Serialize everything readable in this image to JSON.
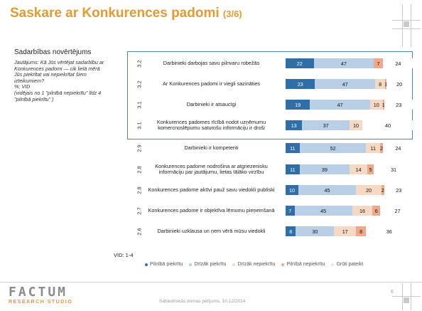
{
  "slide": {
    "title": "Saskare ar Konkurences padomi",
    "title_suffix": "(3/6)",
    "section_title": "Sadarbības novērtējums",
    "question_lines": [
      "Jautājums: Kā Jūs vērtējat sadarbību ar",
      "Konkurences padomi — cik lielā mērā",
      "Jūs piekrītat vai nepiekrītat šiem",
      "izteikumiem?",
      "%; VID",
      "(vidējais no 1 \"pilnībā nepiekrītu\" līdz 4",
      "\"pilnībā piekrītu\" )"
    ],
    "vid_note": "VID: 1-4",
    "footer_text": "Sabiedriskās domas pētījums, 10-12/2014",
    "page_number": "6",
    "logo_top": "FACTUM",
    "logo_bottom": "RESEARCH STUDIO"
  },
  "colors": {
    "title": "#e89a2c",
    "highlight_border": "#4a86c5",
    "series": [
      "#2f6ea6",
      "#b8cfe6",
      "#f6d9c5",
      "#f0a988",
      "#ffffff"
    ]
  },
  "chart_data": {
    "type": "bar",
    "orientation": "horizontal",
    "stacked": true,
    "xlim": [
      0,
      100
    ],
    "legend_position": "bottom",
    "series_names": [
      "Pilnībā piekrītu",
      "Drīzāk piekrītu",
      "Drīzāk nepiekrītu",
      "Pilnībā nepiekrītu",
      "Grūti pateikt"
    ],
    "rows": [
      {
        "label": "Darbinieki darbojas savu pilnvaru robežās",
        "vid": "3.2",
        "values": [
          22,
          47,
          0,
          7,
          24
        ],
        "value_labels": [
          "22",
          "47",
          "",
          "7",
          "24"
        ],
        "highlighted": true
      },
      {
        "label": "Ar Konkurences padomi ir viegli sazināties",
        "vid": "3.2",
        "values": [
          23,
          47,
          8,
          1,
          20
        ],
        "value_labels": [
          "23",
          "47",
          "8",
          "1",
          "20"
        ],
        "highlighted": true
      },
      {
        "label": "Darbinieki ir atsaucīgi",
        "vid": "3.1",
        "values": [
          19,
          47,
          10,
          1,
          23
        ],
        "value_labels": [
          "19",
          "47",
          "10",
          "1",
          "23"
        ],
        "highlighted": true
      },
      {
        "label": "Konkurences padomes rīcībā nodot uzņēmumu komercnoslēpumu saturošu informāciju ir droši",
        "vid": "3.1",
        "values": [
          13,
          37,
          10,
          0,
          40
        ],
        "value_labels": [
          "13",
          "37",
          "10",
          "",
          "40"
        ],
        "highlighted": true
      },
      {
        "label": "Darbinieki ir kompetenti",
        "vid": "2.9",
        "values": [
          11,
          52,
          11,
          2,
          24
        ],
        "value_labels": [
          "11",
          "52",
          "11",
          "2",
          "24"
        ],
        "highlighted": false
      },
      {
        "label": "Konkurences padome nodrošina ar atgriezenisku informāciju par jautājumu, lietas tālāko virzību",
        "vid": "2.8",
        "values": [
          11,
          39,
          14,
          5,
          31
        ],
        "value_labels": [
          "11",
          "39",
          "14",
          "5",
          "31"
        ],
        "highlighted": false
      },
      {
        "label": "Konkurences padome aktīvi pauž savu viedokli publiski",
        "vid": "2.8",
        "values": [
          10,
          45,
          20,
          2,
          23
        ],
        "value_labels": [
          "10",
          "45",
          "20",
          "2",
          "23"
        ],
        "highlighted": false
      },
      {
        "label": "Konkurences padome ir objektīva lēmumu pieņemšanā",
        "vid": "2.7",
        "values": [
          7,
          45,
          16,
          6,
          27
        ],
        "value_labels": [
          "7",
          "45",
          "16",
          "6",
          "27"
        ],
        "highlighted": false
      },
      {
        "label": "Darbinieki uzklausa un ņem vērā mūsu viedokli",
        "vid": "2.6",
        "values": [
          8,
          30,
          17,
          8,
          36
        ],
        "value_labels": [
          "8",
          "30",
          "17",
          "8",
          "36"
        ],
        "highlighted": false
      }
    ]
  }
}
